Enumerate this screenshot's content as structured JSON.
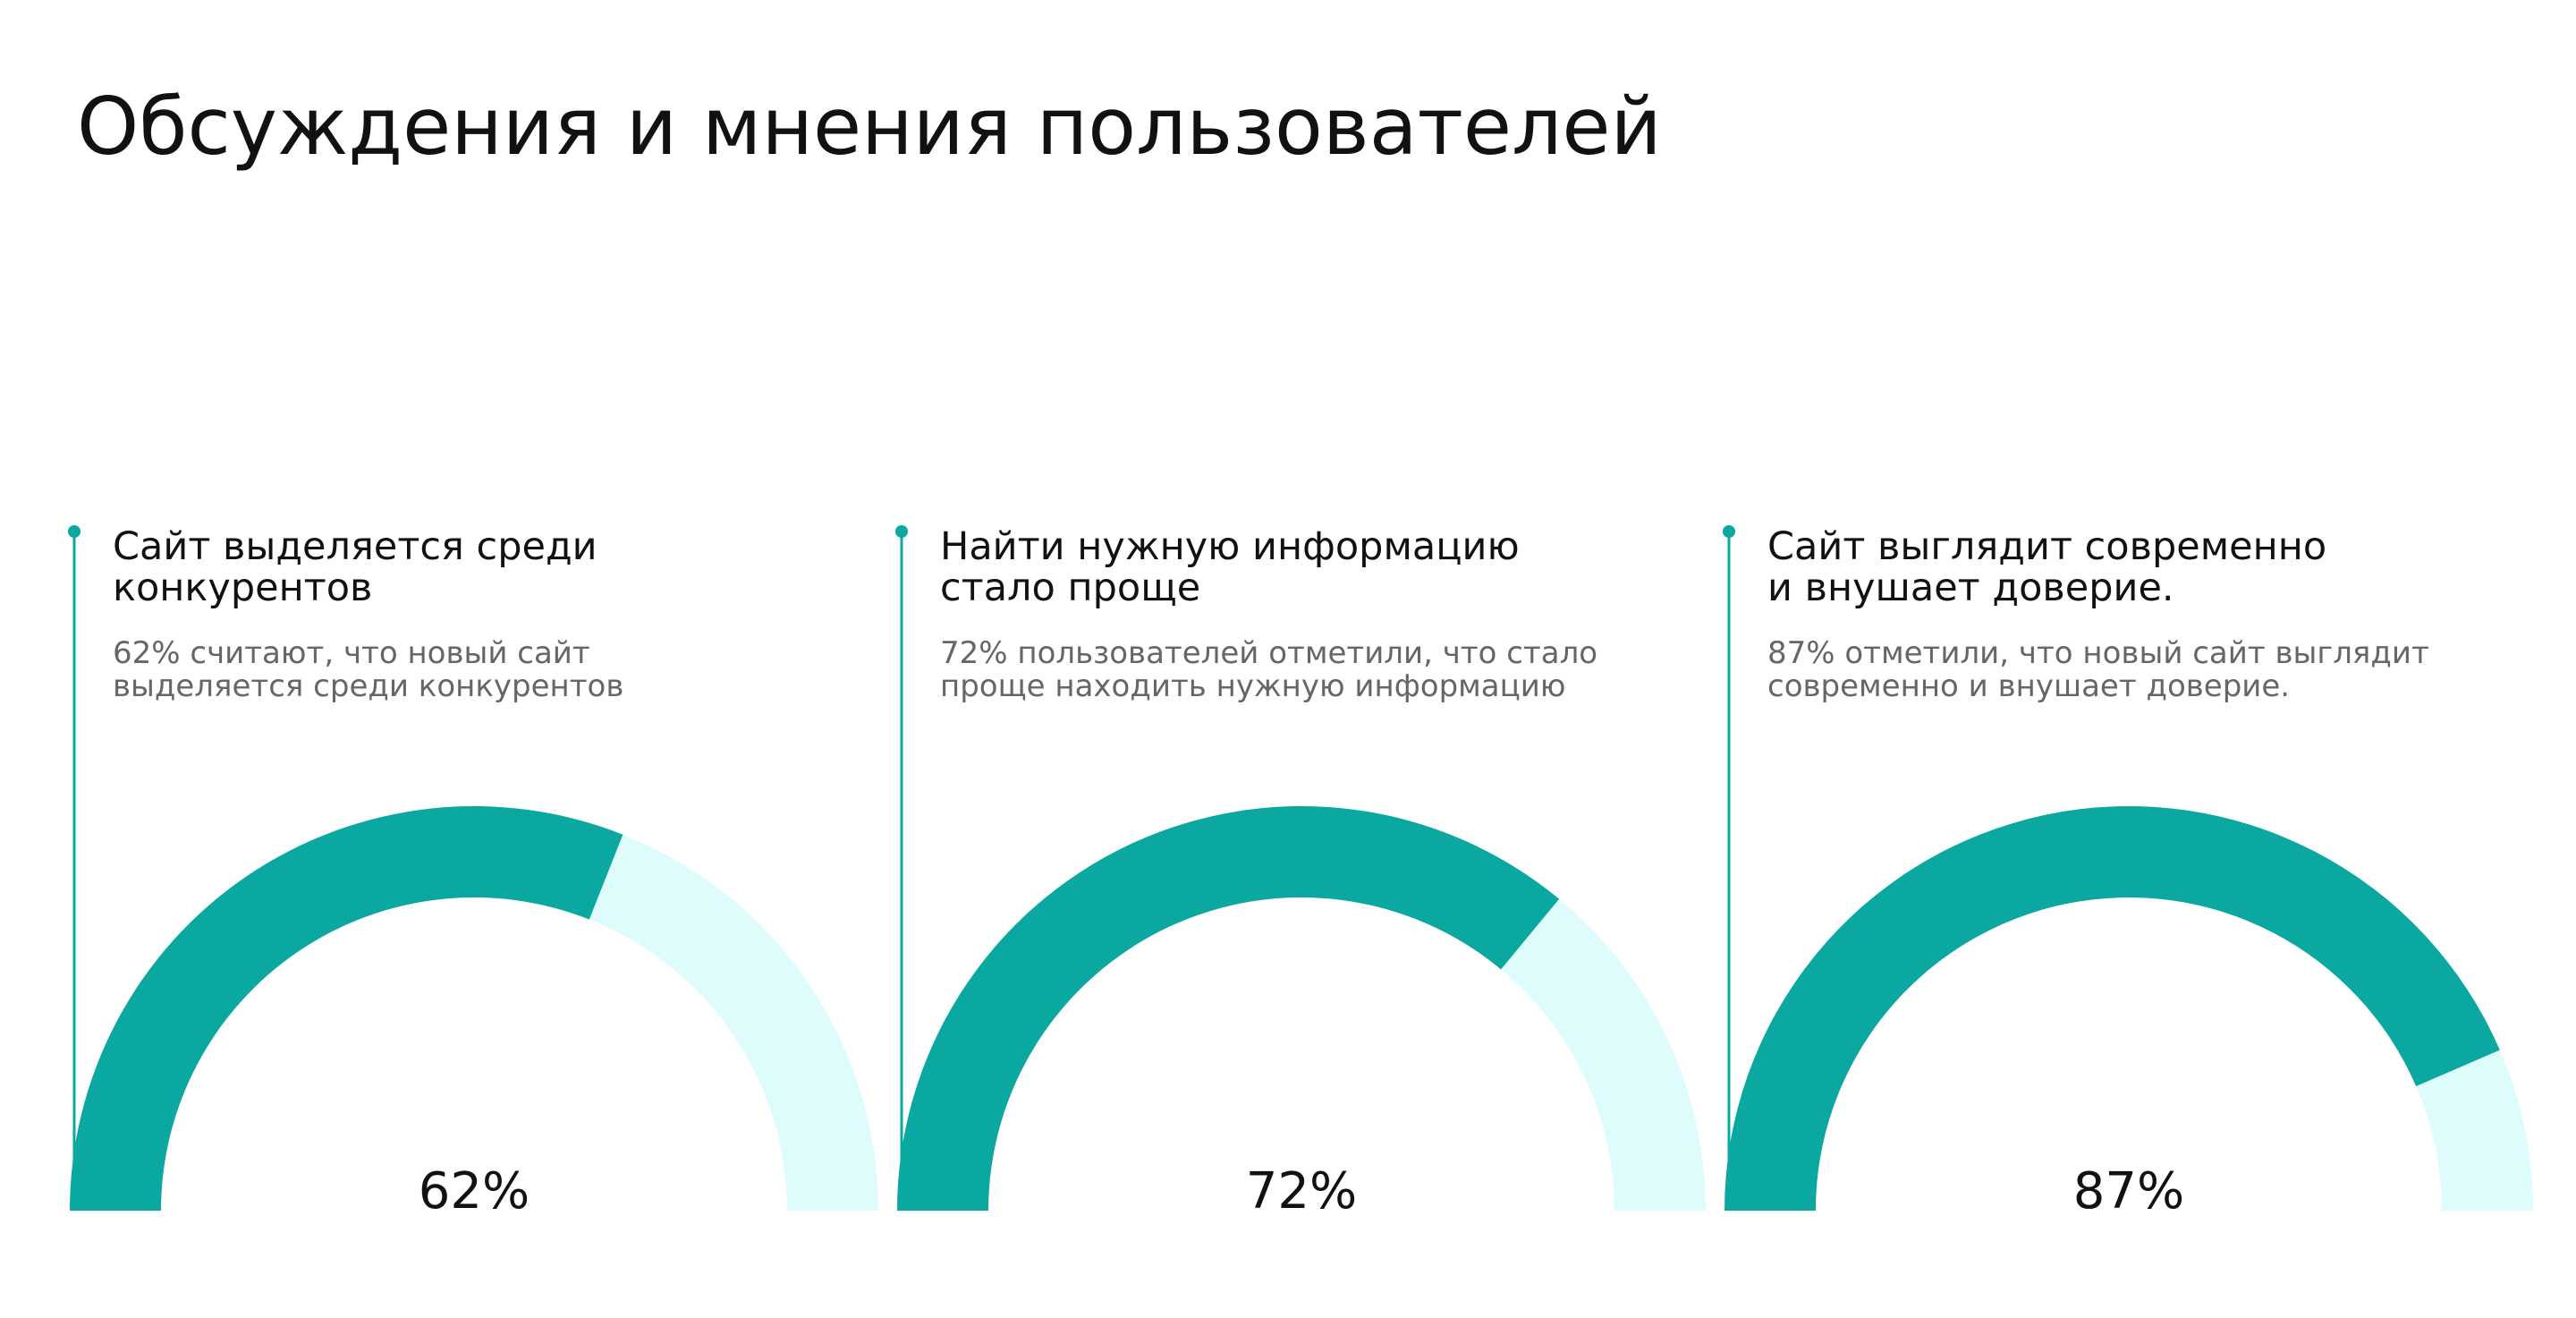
{
  "title": "Обсуждения и мнения пользователей",
  "chart_data": [
    {
      "type": "gauge",
      "title": [
        "Сайт выделяется среди",
        "конкурентов"
      ],
      "subtitle": [
        "62% считают, что новый сайт",
        "выделяется среди конкурентов"
      ],
      "value": 62,
      "value_label": "62%",
      "ylim": [
        0,
        100
      ],
      "color": "#0aa8a0",
      "track_color": "#dffcfc"
    },
    {
      "type": "gauge",
      "title": [
        "Найти нужную информацию",
        "стало проще"
      ],
      "subtitle": [
        "72% пользователей отметили, что стало",
        "проще находить нужную информацию"
      ],
      "value": 72,
      "value_label": "72%",
      "ylim": [
        0,
        100
      ],
      "color": "#0aa8a0",
      "track_color": "#dffcfc"
    },
    {
      "type": "gauge",
      "title": [
        "Сайт выглядит современно",
        "и внушает доверие."
      ],
      "subtitle": [
        "87% отметили, что новый сайт выглядит",
        "современно и внушает доверие."
      ],
      "value": 87,
      "value_label": "87%",
      "ylim": [
        0,
        100
      ],
      "color": "#0aa8a0",
      "track_color": "#dffcfc"
    }
  ]
}
